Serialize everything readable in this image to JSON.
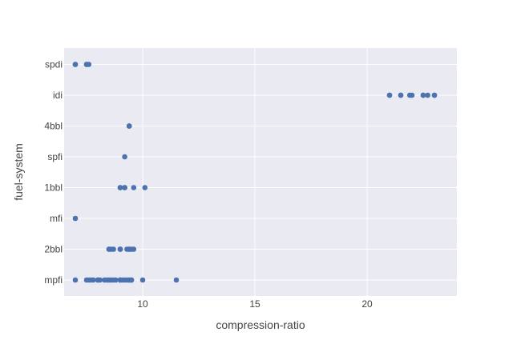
{
  "chart_data": {
    "type": "scatter",
    "title": "",
    "xlabel": "compression-ratio",
    "ylabel": "fuel-system",
    "xlim": [
      6.5,
      24
    ],
    "x_ticks": [
      10,
      15,
      20
    ],
    "categories": [
      "mpfi",
      "2bbl",
      "mfi",
      "1bbl",
      "spfi",
      "4bbl",
      "idi",
      "spdi"
    ],
    "grid": true,
    "legend": "none",
    "colors": {
      "marker": "#4c72b0",
      "plot_bg": "#eaeaf2",
      "grid": "#ffffff"
    },
    "points": [
      {
        "x": 7.0,
        "y": "spdi"
      },
      {
        "x": 7.0,
        "y": "spdi"
      },
      {
        "x": 7.5,
        "y": "spdi"
      },
      {
        "x": 7.6,
        "y": "spdi"
      },
      {
        "x": 7.5,
        "y": "spdi"
      },
      {
        "x": 21.0,
        "y": "idi"
      },
      {
        "x": 21.0,
        "y": "idi"
      },
      {
        "x": 21.5,
        "y": "idi"
      },
      {
        "x": 21.5,
        "y": "idi"
      },
      {
        "x": 21.9,
        "y": "idi"
      },
      {
        "x": 22.0,
        "y": "idi"
      },
      {
        "x": 22.5,
        "y": "idi"
      },
      {
        "x": 22.5,
        "y": "idi"
      },
      {
        "x": 22.7,
        "y": "idi"
      },
      {
        "x": 23.0,
        "y": "idi"
      },
      {
        "x": 23.0,
        "y": "idi"
      },
      {
        "x": 9.4,
        "y": "4bbl"
      },
      {
        "x": 9.4,
        "y": "4bbl"
      },
      {
        "x": 9.4,
        "y": "4bbl"
      },
      {
        "x": 9.2,
        "y": "spfi"
      },
      {
        "x": 9.0,
        "y": "1bbl"
      },
      {
        "x": 9.0,
        "y": "1bbl"
      },
      {
        "x": 9.2,
        "y": "1bbl"
      },
      {
        "x": 9.2,
        "y": "1bbl"
      },
      {
        "x": 9.6,
        "y": "1bbl"
      },
      {
        "x": 10.1,
        "y": "1bbl"
      },
      {
        "x": 7.0,
        "y": "mfi"
      },
      {
        "x": 8.5,
        "y": "2bbl"
      },
      {
        "x": 8.5,
        "y": "2bbl"
      },
      {
        "x": 8.6,
        "y": "2bbl"
      },
      {
        "x": 8.7,
        "y": "2bbl"
      },
      {
        "x": 9.0,
        "y": "2bbl"
      },
      {
        "x": 9.0,
        "y": "2bbl"
      },
      {
        "x": 9.0,
        "y": "2bbl"
      },
      {
        "x": 9.3,
        "y": "2bbl"
      },
      {
        "x": 9.4,
        "y": "2bbl"
      },
      {
        "x": 9.4,
        "y": "2bbl"
      },
      {
        "x": 9.5,
        "y": "2bbl"
      },
      {
        "x": 9.6,
        "y": "2bbl"
      },
      {
        "x": 7.0,
        "y": "mpfi"
      },
      {
        "x": 7.5,
        "y": "mpfi"
      },
      {
        "x": 7.6,
        "y": "mpfi"
      },
      {
        "x": 7.7,
        "y": "mpfi"
      },
      {
        "x": 7.8,
        "y": "mpfi"
      },
      {
        "x": 8.0,
        "y": "mpfi"
      },
      {
        "x": 8.0,
        "y": "mpfi"
      },
      {
        "x": 8.1,
        "y": "mpfi"
      },
      {
        "x": 8.3,
        "y": "mpfi"
      },
      {
        "x": 8.4,
        "y": "mpfi"
      },
      {
        "x": 8.5,
        "y": "mpfi"
      },
      {
        "x": 8.5,
        "y": "mpfi"
      },
      {
        "x": 8.6,
        "y": "mpfi"
      },
      {
        "x": 8.7,
        "y": "mpfi"
      },
      {
        "x": 8.8,
        "y": "mpfi"
      },
      {
        "x": 9.0,
        "y": "mpfi"
      },
      {
        "x": 9.0,
        "y": "mpfi"
      },
      {
        "x": 9.0,
        "y": "mpfi"
      },
      {
        "x": 9.1,
        "y": "mpfi"
      },
      {
        "x": 9.2,
        "y": "mpfi"
      },
      {
        "x": 9.3,
        "y": "mpfi"
      },
      {
        "x": 9.4,
        "y": "mpfi"
      },
      {
        "x": 9.4,
        "y": "mpfi"
      },
      {
        "x": 9.5,
        "y": "mpfi"
      },
      {
        "x": 9.5,
        "y": "mpfi"
      },
      {
        "x": 10.0,
        "y": "mpfi"
      },
      {
        "x": 11.5,
        "y": "mpfi"
      }
    ]
  }
}
